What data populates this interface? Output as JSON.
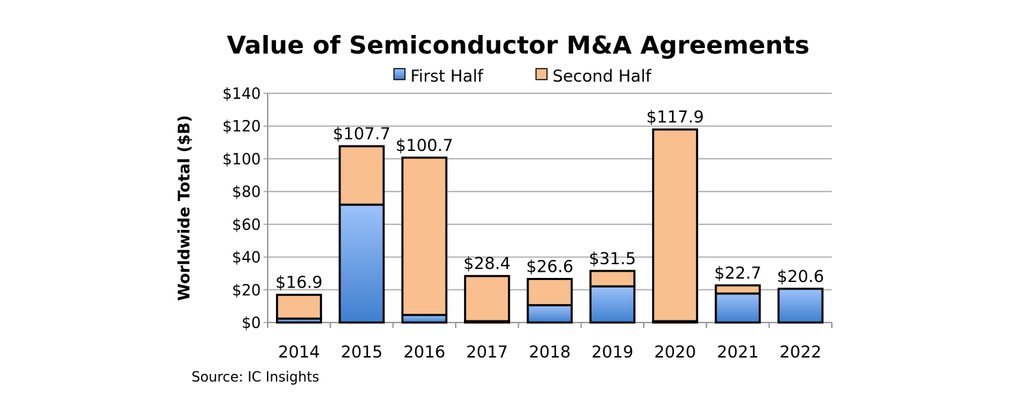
{
  "chart_data": {
    "type": "bar",
    "stacked": true,
    "title": "Value of Semiconductor M&A Agreements",
    "ylabel": "Worldwide Total ($B)",
    "xlabel": "",
    "source": "Source: IC Insights",
    "ylim": [
      0,
      140
    ],
    "yticks": [
      0,
      20,
      40,
      60,
      80,
      100,
      120,
      140
    ],
    "ytick_labels": [
      "$0",
      "$20",
      "$40",
      "$60",
      "$80",
      "$100",
      "$120",
      "$140"
    ],
    "legend_position": "top-center",
    "grid": true,
    "categories": [
      "2014",
      "2015",
      "2016",
      "2017",
      "2018",
      "2019",
      "2020",
      "2021",
      "2022"
    ],
    "series": [
      {
        "name": "First Half",
        "color": "#4a86d4",
        "values": [
          2.4,
          72.0,
          4.6,
          0.8,
          10.6,
          22.1,
          0.8,
          17.7,
          20.6
        ]
      },
      {
        "name": "Second Half",
        "color": "#f9bf8f",
        "values": [
          14.5,
          35.7,
          96.1,
          27.6,
          16.0,
          9.4,
          117.1,
          5.0,
          0
        ]
      }
    ],
    "totals": [
      16.9,
      107.7,
      100.7,
      28.4,
      26.6,
      31.5,
      117.9,
      22.7,
      20.6
    ],
    "total_labels": [
      "$16.9",
      "$107.7",
      "$100.7",
      "$28.4",
      "$26.6",
      "$31.5",
      "$117.9",
      "$22.7",
      "$20.6"
    ]
  }
}
